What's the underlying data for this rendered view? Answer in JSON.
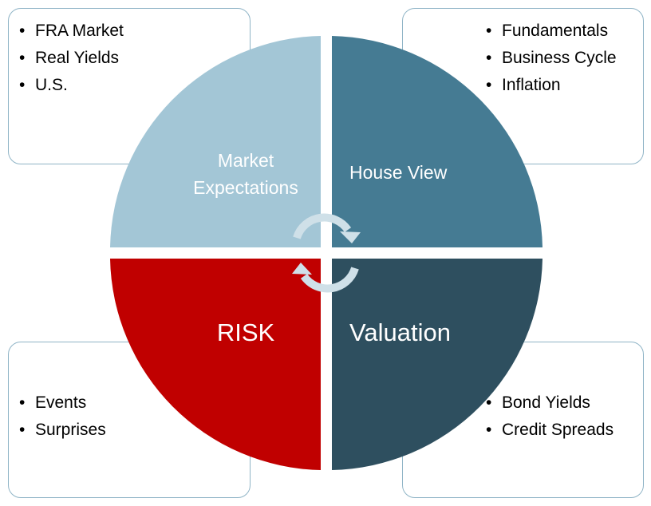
{
  "quadrants": {
    "top_left": {
      "label_line1": "Market",
      "label_line2": "Expectations",
      "color": "#a3c6d6"
    },
    "top_right": {
      "label": "House View",
      "color": "#457b93"
    },
    "bottom_left": {
      "label": "RISK",
      "color": "#c00000"
    },
    "bottom_right": {
      "label": "Valuation",
      "color": "#2e4f5f"
    }
  },
  "boxes": {
    "top_left": {
      "items": [
        "FRA Market",
        "Real Yields",
        "U.S."
      ]
    },
    "top_right": {
      "items": [
        "Fundamentals",
        "Business Cycle",
        "Inflation"
      ]
    },
    "bottom_left": {
      "items": [
        "Events",
        "Surprises"
      ]
    },
    "bottom_right": {
      "items": [
        "Bond Yields",
        "Credit Spreads"
      ]
    }
  },
  "cycle_arrows_color": "#cfe0e8",
  "box_border_color": "#8fb4c6"
}
